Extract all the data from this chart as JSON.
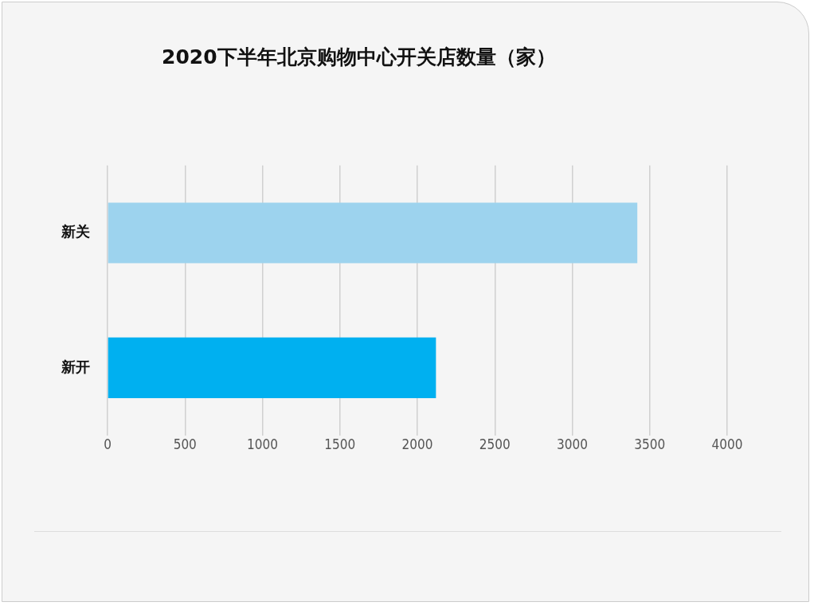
{
  "chart_data": {
    "type": "bar",
    "title": "2020下半年北京购物中心开关店数量（家）",
    "orientation": "horizontal",
    "categories": [
      "新关",
      "新开"
    ],
    "values": [
      3420,
      2120
    ],
    "colors": [
      "#9dd3ee",
      "#00b0f0"
    ],
    "xlim": [
      0,
      4000
    ],
    "xticks": [
      0,
      500,
      1000,
      1500,
      2000,
      2500,
      3000,
      3500,
      4000
    ],
    "grid": "x",
    "legend": false
  }
}
